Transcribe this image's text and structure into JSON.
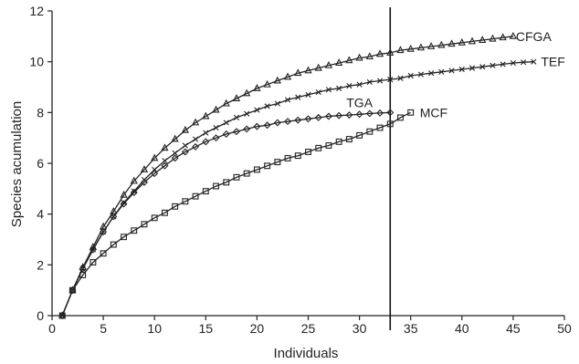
{
  "chart_data": {
    "type": "line",
    "xlabel": "Individuals",
    "ylabel": "Species acumulation",
    "xlim": [
      0,
      50
    ],
    "ylim": [
      0,
      12
    ],
    "xticks": [
      0,
      5,
      10,
      15,
      20,
      25,
      30,
      35,
      40,
      45,
      50
    ],
    "yticks": [
      0,
      2,
      4,
      6,
      8,
      10,
      12
    ],
    "grid": false,
    "legend": "none",
    "reference_line": {
      "orientation": "vertical",
      "x": 33
    },
    "series": [
      {
        "name": "CFGA",
        "marker": "triangle",
        "x": [
          1,
          2,
          3,
          4,
          5,
          6,
          7,
          8,
          9,
          10,
          11,
          12,
          13,
          14,
          15,
          16,
          17,
          18,
          19,
          20,
          21,
          22,
          23,
          24,
          25,
          26,
          27,
          28,
          29,
          30,
          31,
          32,
          33,
          34,
          35,
          36,
          37,
          38,
          39,
          40,
          41,
          42,
          43,
          44,
          45
        ],
        "y": [
          0,
          1.0,
          1.9,
          2.7,
          3.5,
          4.1,
          4.75,
          5.3,
          5.75,
          6.2,
          6.6,
          6.95,
          7.3,
          7.6,
          7.85,
          8.1,
          8.35,
          8.55,
          8.75,
          8.95,
          9.1,
          9.25,
          9.4,
          9.55,
          9.65,
          9.75,
          9.85,
          9.95,
          10.05,
          10.15,
          10.2,
          10.3,
          10.35,
          10.45,
          10.5,
          10.55,
          10.6,
          10.65,
          10.7,
          10.75,
          10.8,
          10.85,
          10.9,
          10.95,
          11.0
        ]
      },
      {
        "name": "TEF",
        "marker": "x",
        "x": [
          1,
          2,
          3,
          4,
          5,
          6,
          7,
          8,
          9,
          10,
          11,
          12,
          13,
          14,
          15,
          16,
          17,
          18,
          19,
          20,
          21,
          22,
          23,
          24,
          25,
          26,
          27,
          28,
          29,
          30,
          31,
          32,
          33,
          34,
          35,
          36,
          37,
          38,
          39,
          40,
          41,
          42,
          43,
          44,
          45,
          46,
          47
        ],
        "y": [
          0,
          1.0,
          1.85,
          2.6,
          3.3,
          3.9,
          4.45,
          4.9,
          5.35,
          5.75,
          6.1,
          6.4,
          6.7,
          6.95,
          7.2,
          7.4,
          7.6,
          7.8,
          7.95,
          8.1,
          8.25,
          8.35,
          8.5,
          8.6,
          8.7,
          8.8,
          8.9,
          8.95,
          9.05,
          9.1,
          9.2,
          9.25,
          9.3,
          9.35,
          9.45,
          9.5,
          9.55,
          9.6,
          9.65,
          9.7,
          9.75,
          9.8,
          9.85,
          9.9,
          9.95,
          9.98,
          10.0
        ]
      },
      {
        "name": "TGA",
        "marker": "diamond",
        "x": [
          1,
          2,
          3,
          4,
          5,
          6,
          7,
          8,
          9,
          10,
          11,
          12,
          13,
          14,
          15,
          16,
          17,
          18,
          19,
          20,
          21,
          22,
          23,
          24,
          25,
          26,
          27,
          28,
          29,
          30,
          31,
          32,
          33
        ],
        "y": [
          0,
          1.0,
          1.85,
          2.6,
          3.3,
          3.9,
          4.4,
          4.85,
          5.25,
          5.6,
          5.9,
          6.2,
          6.45,
          6.65,
          6.85,
          7.0,
          7.15,
          7.25,
          7.35,
          7.45,
          7.5,
          7.6,
          7.65,
          7.7,
          7.75,
          7.8,
          7.85,
          7.88,
          7.9,
          7.93,
          7.96,
          7.98,
          8.0
        ]
      },
      {
        "name": "MCF",
        "marker": "square",
        "x": [
          1,
          2,
          3,
          4,
          5,
          6,
          7,
          8,
          9,
          10,
          11,
          12,
          13,
          14,
          15,
          16,
          17,
          18,
          19,
          20,
          21,
          22,
          23,
          24,
          25,
          26,
          27,
          28,
          29,
          30,
          31,
          32,
          33,
          34,
          35
        ],
        "y": [
          0,
          1.0,
          1.6,
          2.1,
          2.45,
          2.8,
          3.1,
          3.35,
          3.6,
          3.85,
          4.05,
          4.3,
          4.5,
          4.7,
          4.9,
          5.1,
          5.25,
          5.45,
          5.6,
          5.75,
          5.9,
          6.05,
          6.2,
          6.3,
          6.45,
          6.6,
          6.7,
          6.85,
          6.95,
          7.1,
          7.25,
          7.4,
          7.55,
          7.8,
          8.0
        ]
      }
    ]
  }
}
